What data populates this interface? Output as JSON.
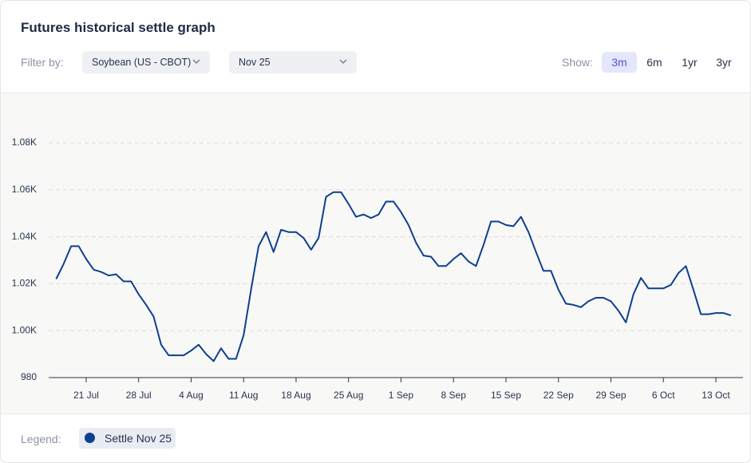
{
  "header": {
    "title": "Futures historical settle graph",
    "filter_label": "Filter by:",
    "filters": [
      "Soybean (US - CBOT)",
      "Nov 25"
    ],
    "show_label": "Show:",
    "ranges": [
      "3m",
      "6m",
      "1yr",
      "3yr"
    ],
    "selected_range": "3m"
  },
  "legend_label": "Legend:",
  "chart_data": {
    "type": "line",
    "categories": [
      null,
      null,
      null,
      null,
      "21 Jul",
      null,
      null,
      null,
      null,
      null,
      null,
      "28 Jul",
      null,
      null,
      null,
      null,
      null,
      null,
      "4 Aug",
      null,
      null,
      null,
      null,
      null,
      null,
      "11 Aug",
      null,
      null,
      null,
      null,
      null,
      null,
      "18 Aug",
      null,
      null,
      null,
      null,
      null,
      null,
      "25 Aug",
      null,
      null,
      null,
      null,
      null,
      null,
      "1 Sep",
      null,
      null,
      null,
      null,
      null,
      null,
      "8 Sep",
      null,
      null,
      null,
      null,
      null,
      null,
      "15 Sep",
      null,
      null,
      null,
      null,
      null,
      null,
      "22 Sep",
      null,
      null,
      null,
      null,
      null,
      null,
      "29 Sep",
      null,
      null,
      null,
      null,
      null,
      null,
      "6 Oct",
      null,
      null,
      null,
      null,
      null,
      null,
      "13 Oct",
      null,
      null
    ],
    "series": [
      {
        "name": "Settle Nov 25",
        "color": "#0d3f91",
        "values": [
          1022,
          1028.5,
          1036,
          1036,
          1030.5,
          1026,
          1025,
          1023.5,
          1024,
          1021,
          1021,
          1015.5,
          1011,
          1006,
          994,
          989.5,
          989.5,
          989.5,
          991.5,
          994,
          990,
          987,
          992.5,
          988,
          988,
          998,
          1017.5,
          1036,
          1042,
          1033.5,
          1043,
          1042,
          1042,
          1039.5,
          1034.5,
          1039.5,
          1057,
          1059,
          1059,
          1054,
          1048.5,
          1049.5,
          1048,
          1049.5,
          1055,
          1055,
          1050.5,
          1045,
          1037.5,
          1032,
          1031.5,
          1027.5,
          1027.5,
          1030.5,
          1033,
          1029.5,
          1027.5,
          1036.5,
          1046.5,
          1046.5,
          1045,
          1044.5,
          1048.5,
          1042,
          1033.5,
          1025.5,
          1025.5,
          1017.5,
          1011.5,
          1011,
          1010,
          1012.5,
          1014,
          1014,
          1012.5,
          1008.5,
          1003.5,
          1015.5,
          1022.5,
          1018,
          1018,
          1018,
          1019.5,
          1024.5,
          1027.5,
          1017.5,
          1007,
          1007,
          1007.5,
          1007.5,
          1006.5
        ]
      }
    ],
    "ylim": [
      980,
      1080
    ],
    "yticks": [
      980,
      {
        "value": 1000,
        "label": "1.00K"
      },
      {
        "value": 1020,
        "label": "1.02K"
      },
      {
        "value": 1040,
        "label": "1.04K"
      },
      {
        "value": 1060,
        "label": "1.06K"
      },
      {
        "value": 1080,
        "label": "1.08K"
      }
    ],
    "grid": true,
    "legend": "bottom-left"
  }
}
